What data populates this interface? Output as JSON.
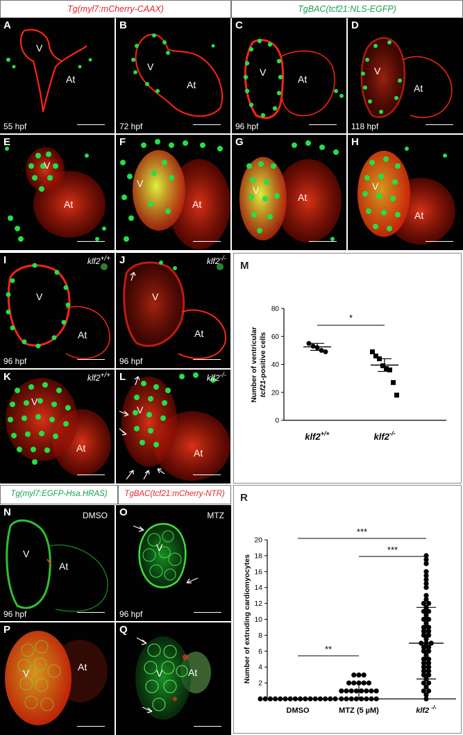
{
  "headers": {
    "top_left": "Tg(myl7:mCherry-CAAX)",
    "top_right": "TgBAC(tcf21:NLS-EGFP)",
    "bottom_left": "Tg(myl7:EGFP-Hsa.HRAS)",
    "bottom_right": "TgBAC(tcf21:mCherry-NTR)"
  },
  "colors": {
    "red_label": "#e8242b",
    "green_label": "#1aa04a",
    "mcherry": "#ff2414",
    "egfp": "#22e048"
  },
  "panels": {
    "A": {
      "letter": "A",
      "v": "V",
      "at": "At",
      "time": "55 hpf"
    },
    "B": {
      "letter": "B",
      "v": "V",
      "at": "At",
      "time": "72 hpf"
    },
    "C": {
      "letter": "C",
      "v": "V",
      "at": "At",
      "time": "96 hpf"
    },
    "D": {
      "letter": "D",
      "v": "V",
      "at": "At",
      "time": "118 hpf"
    },
    "E": {
      "letter": "E",
      "v": "V",
      "at": "At"
    },
    "F": {
      "letter": "F",
      "v": "V",
      "at": "At"
    },
    "G": {
      "letter": "G",
      "v": "V",
      "at": "At"
    },
    "H": {
      "letter": "H",
      "v": "V",
      "at": "At"
    },
    "I": {
      "letter": "I",
      "v": "V",
      "at": "At",
      "time": "96 hpf",
      "geno_base": "klf2",
      "geno_sup": "+/+"
    },
    "J": {
      "letter": "J",
      "v": "V",
      "at": "At",
      "time": "96 hpf",
      "geno_base": "klf2",
      "geno_sup": "-/-"
    },
    "K": {
      "letter": "K",
      "v": "V",
      "at": "At",
      "geno_base": "klf2",
      "geno_sup": "+/+"
    },
    "L": {
      "letter": "L",
      "v": "V",
      "at": "At",
      "geno_base": "klf2",
      "geno_sup": "-/-"
    },
    "N": {
      "letter": "N",
      "v": "V",
      "at": "At",
      "time": "96 hpf",
      "cond": "DMSO"
    },
    "O": {
      "letter": "O",
      "v": "V",
      "time": "96 hpf",
      "cond": "MTZ"
    },
    "P": {
      "letter": "P",
      "v": "V",
      "at": "At"
    },
    "Q": {
      "letter": "Q",
      "v": "V",
      "at": "At"
    }
  },
  "chart_data": [
    {
      "panel": "M",
      "type": "scatter",
      "ylabel_line1": "Number of ventricular",
      "ylabel_line2_italic": "tcf21",
      "ylabel_line2_rest": "-positive cells",
      "ylim": [
        0,
        80
      ],
      "yticks": [
        0,
        20,
        40,
        60,
        80
      ],
      "significance": "*",
      "categories": [
        {
          "base": "klf2",
          "sup": "+/+",
          "marker": "circle",
          "mean": 52.5,
          "sem_low": 50,
          "sem_high": 55,
          "values": [
            55,
            53,
            52,
            50,
            49
          ]
        },
        {
          "base": "klf2",
          "sup": "-/-",
          "marker": "square",
          "mean": 39.5,
          "sem_low": 35,
          "sem_high": 44,
          "values": [
            49,
            46,
            44,
            39,
            37,
            36,
            27,
            18
          ]
        }
      ]
    },
    {
      "panel": "R",
      "type": "scatter",
      "ylabel": "Number of extruding cardiomyocytes",
      "ylim": [
        0,
        20
      ],
      "yticks": [
        0,
        2,
        4,
        6,
        8,
        10,
        12,
        14,
        16,
        18,
        20
      ],
      "categories": [
        {
          "label": "DMSO",
          "mean": 0,
          "sd_low": 0,
          "sd_high": 0,
          "values": [
            0,
            0,
            0,
            0,
            0,
            0,
            0,
            0,
            0,
            0,
            0,
            0,
            0,
            0,
            0,
            0
          ]
        },
        {
          "label": "MTZ (5 µM)",
          "mean": 1,
          "sd_low": 0,
          "sd_high": 2,
          "values": [
            3,
            3,
            3,
            2,
            2,
            2,
            2,
            2,
            1,
            1,
            1,
            1,
            1,
            1,
            1,
            1,
            0,
            0,
            0,
            0,
            0,
            0,
            0,
            0
          ]
        },
        {
          "label_base": "klf2",
          "label_sup": "-/-",
          "mean": 7,
          "sd_low": 2.5,
          "sd_high": 11.5,
          "values": [
            18,
            17.5,
            17,
            16,
            15.5,
            15,
            14.5,
            14,
            13,
            12.5,
            12,
            12,
            11.5,
            11,
            11,
            10.5,
            10,
            10,
            9.5,
            9,
            9,
            8.5,
            8.5,
            8,
            8,
            7.5,
            7,
            7,
            7,
            6.5,
            6.5,
            6,
            6,
            5.5,
            5,
            5,
            4.5,
            4.5,
            4,
            4,
            3.5,
            3.5,
            3,
            3,
            2.5,
            2,
            2,
            1.5,
            1,
            1,
            0.5,
            0
          ]
        }
      ],
      "significance": [
        {
          "from": 0,
          "to": 2,
          "label": "***"
        },
        {
          "from": 1,
          "to": 2,
          "label": "***"
        },
        {
          "from": 0,
          "to": 1,
          "label": "**"
        }
      ]
    }
  ]
}
